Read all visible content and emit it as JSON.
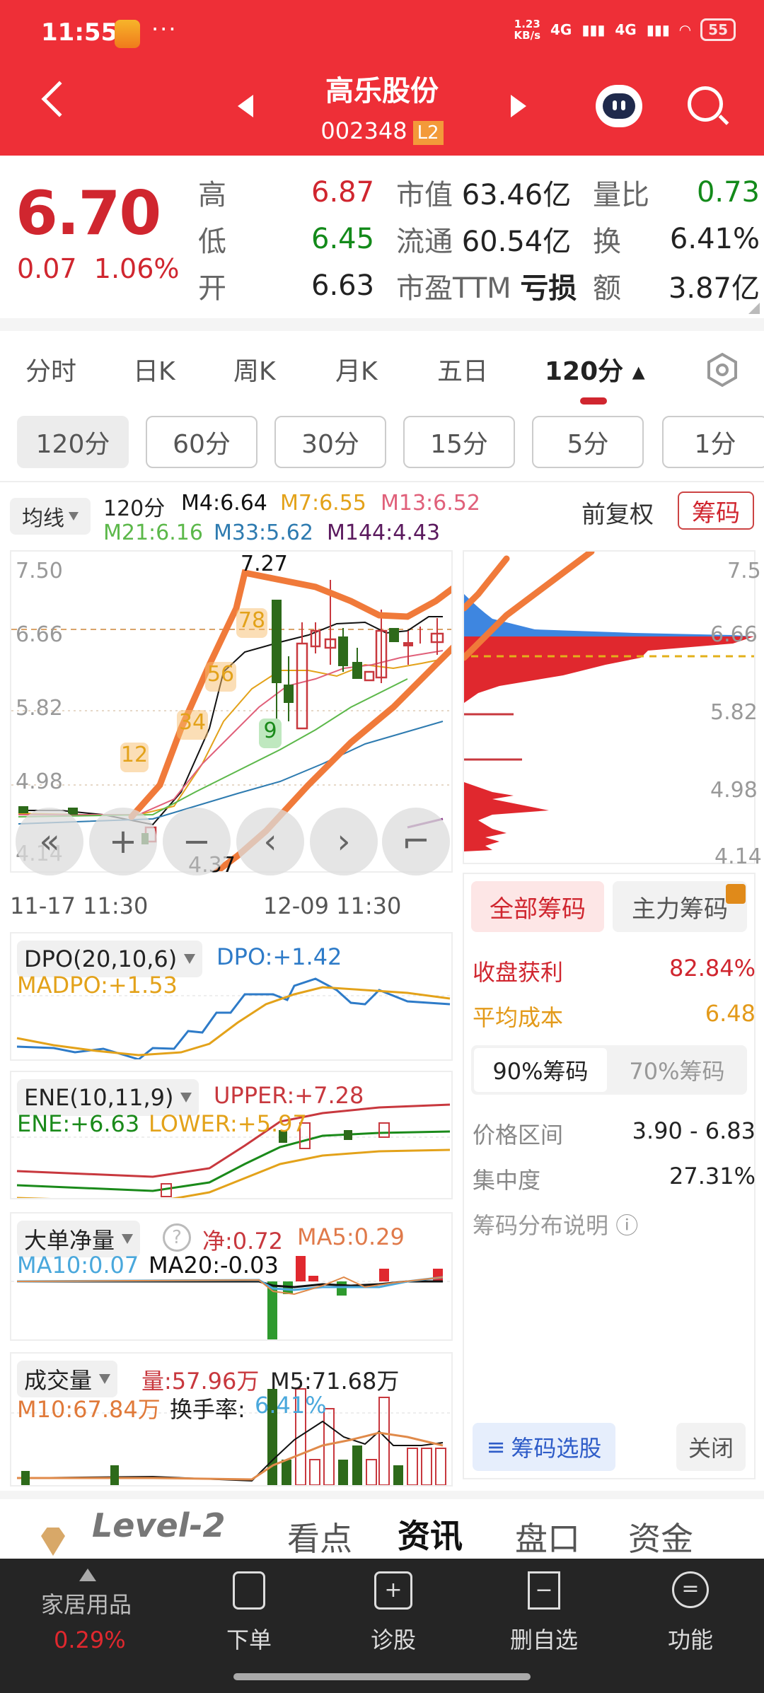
{
  "status_bar": {
    "time": "11:55",
    "more": "···",
    "speed_top": "1.23",
    "speed_bottom": "KB/s",
    "net1": "4G",
    "net2": "4G",
    "battery": "55"
  },
  "header": {
    "stock_name": "高乐股份",
    "stock_code": "002348",
    "level_badge": "L2"
  },
  "quote": {
    "price": "6.70",
    "change": "0.07",
    "change_pct": "1.06%",
    "rows": [
      {
        "l1": "高",
        "v1": "6.87",
        "c1": "red",
        "l2": "市值",
        "v2": "63.46亿",
        "l3": "量比",
        "v3": "0.73",
        "c3": "green"
      },
      {
        "l1": "低",
        "v1": "6.45",
        "c1": "green",
        "l2": "流通",
        "v2": "60.54亿",
        "l3": "换",
        "v3": "6.41%",
        "c3": "dark"
      },
      {
        "l1": "开",
        "v1": "6.63",
        "c1": "dark",
        "l2": "市盈TTM",
        "v2": "亏损",
        "l3": "额",
        "v3": "3.87亿",
        "c3": "dark"
      }
    ]
  },
  "period_tabs": [
    {
      "label": "分时"
    },
    {
      "label": "日K"
    },
    {
      "label": "周K"
    },
    {
      "label": "月K"
    },
    {
      "label": "五日"
    },
    {
      "label": "120分 ▴",
      "active": true
    }
  ],
  "sub_periods": [
    {
      "label": "120分",
      "active": true
    },
    {
      "label": "60分"
    },
    {
      "label": "30分"
    },
    {
      "label": "15分"
    },
    {
      "label": "5分"
    },
    {
      "label": "1分"
    }
  ],
  "ma_legend": {
    "selector": "均线",
    "period": "120分",
    "items": [
      {
        "label": "M4:6.64",
        "color": "#111111"
      },
      {
        "label": "M7:6.55",
        "color": "#e3a21a"
      },
      {
        "label": "M13:6.52",
        "color": "#e0607a"
      },
      {
        "label": "M21:6.16",
        "color": "#5cb84a"
      },
      {
        "label": "M33:5.62",
        "color": "#2e7bb0"
      },
      {
        "label": "M144:4.43",
        "color": "#5b1a5e"
      }
    ],
    "adjust": "前复权",
    "chip_button": "筹码"
  },
  "main_chart": {
    "y_ticks": [
      "7.50",
      "6.66",
      "5.82",
      "4.98",
      "4.14"
    ],
    "annotations": {
      "high": "7.27",
      "low": "4.37"
    },
    "x_labels": [
      "11-17 11:30",
      "12-09 11:30"
    ],
    "signal_badges": [
      "12",
      "34",
      "56",
      "78",
      "9"
    ]
  },
  "chip_chart": {
    "y_ticks": [
      "7.5",
      "6.66",
      "5.82",
      "4.98",
      "4.14"
    ]
  },
  "chip_panel": {
    "tab_all": "全部筹码",
    "tab_main": "主力筹码",
    "profit_label": "收盘获利",
    "profit_value": "82.84%",
    "avg_cost_label": "平均成本",
    "avg_cost_value": "6.48",
    "seg_90": "90%筹码",
    "seg_70": "70%筹码",
    "range_label": "价格区间",
    "range_value": "3.90 - 6.83",
    "concentration_label": "集中度",
    "concentration_value": "27.31%",
    "help_label": "筹码分布说明",
    "select_button": "筹码选股",
    "close_button": "关闭"
  },
  "indicators": {
    "dpo": {
      "selector": "DPO(20,10,6)",
      "dpo": "DPO:+1.42",
      "madpo": "MADPO:+1.53"
    },
    "ene": {
      "selector": "ENE(10,11,9)",
      "upper": "UPPER:+7.28",
      "ene": "ENE:+6.63",
      "lower": "LOWER:+5.97"
    },
    "big_order": {
      "selector": "大单净量",
      "net": "净:0.72",
      "ma5": "MA5:0.29",
      "ma10": "MA10:0.07",
      "ma20": "MA20:-0.03"
    },
    "volume": {
      "selector": "成交量",
      "vol": "量:57.96万",
      "m5": "M5:71.68万",
      "m10": "M10:67.84万",
      "turnover_label": "换手率:",
      "turnover": "6.41%"
    }
  },
  "bottom_tabs": [
    {
      "label": "Level-2"
    },
    {
      "label": "看点"
    },
    {
      "label": "资讯",
      "active": true
    },
    {
      "label": "盘口"
    },
    {
      "label": "资金"
    }
  ],
  "bottom_bar": {
    "sector": "家居用品",
    "sector_change": "0.29%",
    "actions": [
      {
        "label": "下单"
      },
      {
        "label": "诊股"
      },
      {
        "label": "删自选"
      },
      {
        "label": "功能"
      }
    ]
  },
  "chart_data": {
    "type": "candlestick",
    "title": "高乐股份 002348 120分",
    "y_range": [
      4.14,
      7.5
    ],
    "y_ticks": [
      7.5,
      6.66,
      5.82,
      4.98,
      4.14
    ],
    "x_labels": [
      "11-17 11:30",
      "12-09 11:30"
    ],
    "annotated_high": 7.27,
    "annotated_low": 4.37,
    "moving_averages": {
      "M4": 6.64,
      "M7": 6.55,
      "M13": 6.52,
      "M21": 6.16,
      "M33": 5.62,
      "M144": 4.43
    },
    "chip_distribution": {
      "profit_ratio_pct": 82.84,
      "avg_cost": 6.48,
      "range_90": [
        3.9,
        6.83
      ],
      "concentration_pct": 27.31
    },
    "indicators": {
      "DPO": 1.42,
      "MADPO": 1.53,
      "ENE_UPPER": 7.28,
      "ENE": 6.63,
      "ENE_LOWER": 5.97,
      "net_big_order": 0.72,
      "MA5": 0.29,
      "MA10": 0.07,
      "MA20": -0.03,
      "volume_wan": 57.96,
      "vol_M5_wan": 71.68,
      "vol_M10_wan": 67.84,
      "turnover_pct": 6.41
    }
  }
}
